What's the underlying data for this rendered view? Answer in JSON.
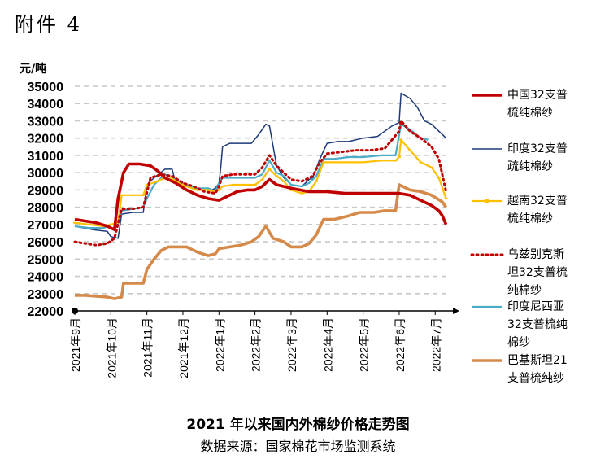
{
  "attachment_label": "附件 4",
  "colors": {
    "china": "#c00000",
    "india": "#1f3a7a",
    "vietnam": "#ffc000",
    "uzbekistan": "#c00000",
    "indonesia": "#4aacc6",
    "pakistan": "#d58a4a",
    "grid": "#c8c8c8"
  },
  "chart_data": {
    "type": "line",
    "title": "2021 年以来国内外棉纱价格走势图",
    "subtitle": "数据来源：国家棉花市场监测系统",
    "ylabel": "元/吨",
    "ylim": [
      22000,
      35000
    ],
    "yticks": [
      "35000",
      "34000",
      "33000",
      "32000",
      "31000",
      "30000",
      "29000",
      "28000",
      "27000",
      "26000",
      "25000",
      "24000",
      "23000",
      "22000"
    ],
    "xlim": [
      0,
      10.4
    ],
    "xtick_labels": [
      "2021年9月",
      "2021年10月",
      "2021年11月",
      "2021年12月",
      "2022年1月",
      "2022年2月",
      "2022年3月",
      "2022年4月",
      "2022年5月",
      "2022年6月",
      "2022年7月"
    ],
    "grid": "horizontal-dashed",
    "legend_position": "right",
    "series": [
      {
        "key": "china",
        "name": "中国32支普梳纯棉纱",
        "legend_lines": [
          "中国32支普",
          "梳纯棉纱"
        ],
        "style": "solid-thick",
        "points": [
          [
            0,
            27300
          ],
          [
            0.3,
            27200
          ],
          [
            0.6,
            27100
          ],
          [
            0.9,
            26900
          ],
          [
            1.1,
            26700
          ],
          [
            1.2,
            28500
          ],
          [
            1.35,
            30000
          ],
          [
            1.5,
            30500
          ],
          [
            1.8,
            30500
          ],
          [
            2.1,
            30400
          ],
          [
            2.3,
            30100
          ],
          [
            2.5,
            29700
          ],
          [
            2.8,
            29400
          ],
          [
            3.1,
            29000
          ],
          [
            3.4,
            28700
          ],
          [
            3.7,
            28500
          ],
          [
            4.0,
            28400
          ],
          [
            4.2,
            28600
          ],
          [
            4.5,
            28900
          ],
          [
            4.8,
            29000
          ],
          [
            5.0,
            29000
          ],
          [
            5.2,
            29200
          ],
          [
            5.4,
            29600
          ],
          [
            5.6,
            29300
          ],
          [
            5.8,
            29200
          ],
          [
            6.0,
            29100
          ],
          [
            6.5,
            28900
          ],
          [
            7.0,
            28900
          ],
          [
            7.5,
            28800
          ],
          [
            8.0,
            28800
          ],
          [
            8.5,
            28800
          ],
          [
            9.0,
            28800
          ],
          [
            9.3,
            28700
          ],
          [
            9.6,
            28400
          ],
          [
            9.9,
            28100
          ],
          [
            10.1,
            27800
          ],
          [
            10.2,
            27500
          ],
          [
            10.3,
            27000
          ]
        ]
      },
      {
        "key": "india",
        "name": "印度32支普疏纯棉纱",
        "legend_lines": [
          "印度32支普",
          "疏纯棉纱"
        ],
        "style": "solid-thin",
        "points": [
          [
            0,
            26900
          ],
          [
            0.5,
            26700
          ],
          [
            0.9,
            26600
          ],
          [
            1.0,
            26300
          ],
          [
            1.2,
            26200
          ],
          [
            1.3,
            27600
          ],
          [
            1.6,
            27700
          ],
          [
            1.9,
            27700
          ],
          [
            2.0,
            29300
          ],
          [
            2.2,
            29700
          ],
          [
            2.5,
            30200
          ],
          [
            2.7,
            30200
          ],
          [
            2.8,
            29400
          ],
          [
            3.1,
            29200
          ],
          [
            3.5,
            29000
          ],
          [
            3.8,
            29000
          ],
          [
            3.9,
            29100
          ],
          [
            4.0,
            29400
          ],
          [
            4.05,
            30300
          ],
          [
            4.1,
            31500
          ],
          [
            4.3,
            31700
          ],
          [
            4.6,
            31700
          ],
          [
            4.9,
            31700
          ],
          [
            5.1,
            32200
          ],
          [
            5.3,
            32800
          ],
          [
            5.4,
            32700
          ],
          [
            5.6,
            30400
          ],
          [
            5.8,
            29700
          ],
          [
            6.0,
            29300
          ],
          [
            6.3,
            29200
          ],
          [
            6.5,
            29600
          ],
          [
            6.6,
            29700
          ],
          [
            6.8,
            30800
          ],
          [
            7.0,
            31700
          ],
          [
            7.3,
            31800
          ],
          [
            7.6,
            31800
          ],
          [
            8.0,
            32000
          ],
          [
            8.4,
            32100
          ],
          [
            8.8,
            32700
          ],
          [
            9.0,
            32900
          ],
          [
            9.05,
            34600
          ],
          [
            9.3,
            34300
          ],
          [
            9.5,
            33800
          ],
          [
            9.7,
            33000
          ],
          [
            9.9,
            32800
          ],
          [
            10.1,
            32400
          ],
          [
            10.3,
            32000
          ]
        ]
      },
      {
        "key": "vietnam",
        "name": "越南32支普梳纯棉纱",
        "legend_lines": [
          "越南32支普",
          "梳纯棉纱"
        ],
        "style": "solid-medium",
        "points": [
          [
            0,
            27100
          ],
          [
            0.4,
            27000
          ],
          [
            0.8,
            26900
          ],
          [
            1.0,
            27000
          ],
          [
            1.2,
            27100
          ],
          [
            1.3,
            28700
          ],
          [
            1.6,
            28700
          ],
          [
            1.9,
            28700
          ],
          [
            2.0,
            29300
          ],
          [
            2.3,
            29500
          ],
          [
            2.6,
            29800
          ],
          [
            2.8,
            29500
          ],
          [
            3.1,
            29200
          ],
          [
            3.4,
            29000
          ],
          [
            3.7,
            29000
          ],
          [
            3.9,
            28900
          ],
          [
            4.0,
            29000
          ],
          [
            4.1,
            29200
          ],
          [
            4.4,
            29300
          ],
          [
            4.7,
            29300
          ],
          [
            5.0,
            29300
          ],
          [
            5.2,
            29600
          ],
          [
            5.4,
            30200
          ],
          [
            5.6,
            29800
          ],
          [
            5.8,
            29500
          ],
          [
            6.0,
            29000
          ],
          [
            6.3,
            28800
          ],
          [
            6.5,
            28900
          ],
          [
            6.7,
            29500
          ],
          [
            6.9,
            30600
          ],
          [
            7.2,
            30600
          ],
          [
            7.6,
            30600
          ],
          [
            8.0,
            30600
          ],
          [
            8.5,
            30700
          ],
          [
            8.9,
            30700
          ],
          [
            9.0,
            30900
          ],
          [
            9.05,
            31900
          ],
          [
            9.3,
            31300
          ],
          [
            9.6,
            30600
          ],
          [
            9.9,
            30300
          ],
          [
            10.1,
            29700
          ],
          [
            10.3,
            28500
          ]
        ]
      },
      {
        "key": "uzbekistan",
        "name": "乌兹别克斯坦32支普梳纯棉纱",
        "legend_lines": [
          "乌兹别克斯",
          "坦32支普梳",
          "纯棉纱"
        ],
        "style": "dotted",
        "points": [
          [
            0,
            26000
          ],
          [
            0.3,
            25900
          ],
          [
            0.6,
            25800
          ],
          [
            0.9,
            25900
          ],
          [
            1.1,
            26200
          ],
          [
            1.3,
            27900
          ],
          [
            1.6,
            27900
          ],
          [
            1.9,
            28000
          ],
          [
            2.1,
            29700
          ],
          [
            2.4,
            29900
          ],
          [
            2.7,
            29800
          ],
          [
            3.0,
            29400
          ],
          [
            3.3,
            29200
          ],
          [
            3.6,
            28900
          ],
          [
            3.9,
            28800
          ],
          [
            4.0,
            29200
          ],
          [
            4.1,
            29800
          ],
          [
            4.4,
            29900
          ],
          [
            4.7,
            29900
          ],
          [
            5.0,
            29900
          ],
          [
            5.2,
            30300
          ],
          [
            5.4,
            31000
          ],
          [
            5.6,
            30400
          ],
          [
            5.8,
            30000
          ],
          [
            6.0,
            29600
          ],
          [
            6.3,
            29500
          ],
          [
            6.6,
            29800
          ],
          [
            6.8,
            30600
          ],
          [
            7.0,
            31100
          ],
          [
            7.4,
            31200
          ],
          [
            7.8,
            31300
          ],
          [
            8.2,
            31300
          ],
          [
            8.6,
            31400
          ],
          [
            9.0,
            32400
          ],
          [
            9.05,
            33000
          ],
          [
            9.3,
            32400
          ],
          [
            9.6,
            32000
          ],
          [
            9.9,
            31500
          ],
          [
            10.1,
            30800
          ],
          [
            10.3,
            28900
          ]
        ]
      },
      {
        "key": "indonesia",
        "name": "印度尼西亚32支普梳纯棉纱",
        "legend_lines": [
          "印度尼西亚",
          "32支普梳纯",
          "棉纱"
        ],
        "style": "solid-medium",
        "points": [
          [
            0,
            26900
          ],
          [
            0.4,
            26800
          ],
          [
            0.8,
            26800
          ],
          [
            1.0,
            27000
          ],
          [
            1.2,
            27000
          ],
          [
            1.3,
            27800
          ],
          [
            1.6,
            27900
          ],
          [
            1.9,
            28000
          ],
          [
            2.0,
            28500
          ],
          [
            2.2,
            29300
          ],
          [
            2.5,
            29900
          ],
          [
            2.8,
            29600
          ],
          [
            3.1,
            29300
          ],
          [
            3.4,
            29100
          ],
          [
            3.7,
            29100
          ],
          [
            3.9,
            28900
          ],
          [
            4.0,
            29400
          ],
          [
            4.1,
            29700
          ],
          [
            4.4,
            29700
          ],
          [
            4.7,
            29700
          ],
          [
            5.0,
            29700
          ],
          [
            5.2,
            29900
          ],
          [
            5.4,
            30700
          ],
          [
            5.6,
            30000
          ],
          [
            5.8,
            29800
          ],
          [
            6.0,
            29300
          ],
          [
            6.3,
            29200
          ],
          [
            6.5,
            29400
          ],
          [
            6.7,
            29800
          ],
          [
            6.9,
            30800
          ],
          [
            7.2,
            30800
          ],
          [
            7.6,
            30900
          ],
          [
            8.0,
            30900
          ],
          [
            8.5,
            31000
          ],
          [
            8.9,
            31000
          ],
          [
            9.05,
            32800
          ],
          [
            9.3,
            32500
          ],
          [
            9.6,
            32000
          ],
          [
            9.8,
            31900
          ]
        ]
      },
      {
        "key": "pakistan",
        "name": "巴基斯坦21支普梳纯纱",
        "legend_lines": [
          "巴基斯坦21",
          "支普梳纯纱"
        ],
        "style": "solid-thick",
        "points": [
          [
            0,
            22900
          ],
          [
            0.3,
            22900
          ],
          [
            0.6,
            22850
          ],
          [
            0.9,
            22800
          ],
          [
            1.1,
            22700
          ],
          [
            1.3,
            22800
          ],
          [
            1.35,
            23600
          ],
          [
            1.6,
            23600
          ],
          [
            1.9,
            23600
          ],
          [
            2.0,
            24400
          ],
          [
            2.2,
            25000
          ],
          [
            2.4,
            25500
          ],
          [
            2.6,
            25700
          ],
          [
            2.8,
            25700
          ],
          [
            3.1,
            25700
          ],
          [
            3.4,
            25400
          ],
          [
            3.7,
            25200
          ],
          [
            3.9,
            25300
          ],
          [
            4.0,
            25600
          ],
          [
            4.3,
            25700
          ],
          [
            4.6,
            25800
          ],
          [
            4.9,
            26000
          ],
          [
            5.1,
            26300
          ],
          [
            5.3,
            26900
          ],
          [
            5.5,
            26200
          ],
          [
            5.8,
            26000
          ],
          [
            6.0,
            25700
          ],
          [
            6.3,
            25700
          ],
          [
            6.5,
            25900
          ],
          [
            6.7,
            26400
          ],
          [
            6.9,
            27300
          ],
          [
            7.2,
            27300
          ],
          [
            7.6,
            27500
          ],
          [
            7.9,
            27700
          ],
          [
            8.3,
            27700
          ],
          [
            8.6,
            27800
          ],
          [
            8.9,
            27800
          ],
          [
            9.0,
            29300
          ],
          [
            9.3,
            29000
          ],
          [
            9.6,
            28900
          ],
          [
            9.9,
            28700
          ],
          [
            10.2,
            28300
          ],
          [
            10.3,
            28000
          ]
        ]
      }
    ]
  }
}
